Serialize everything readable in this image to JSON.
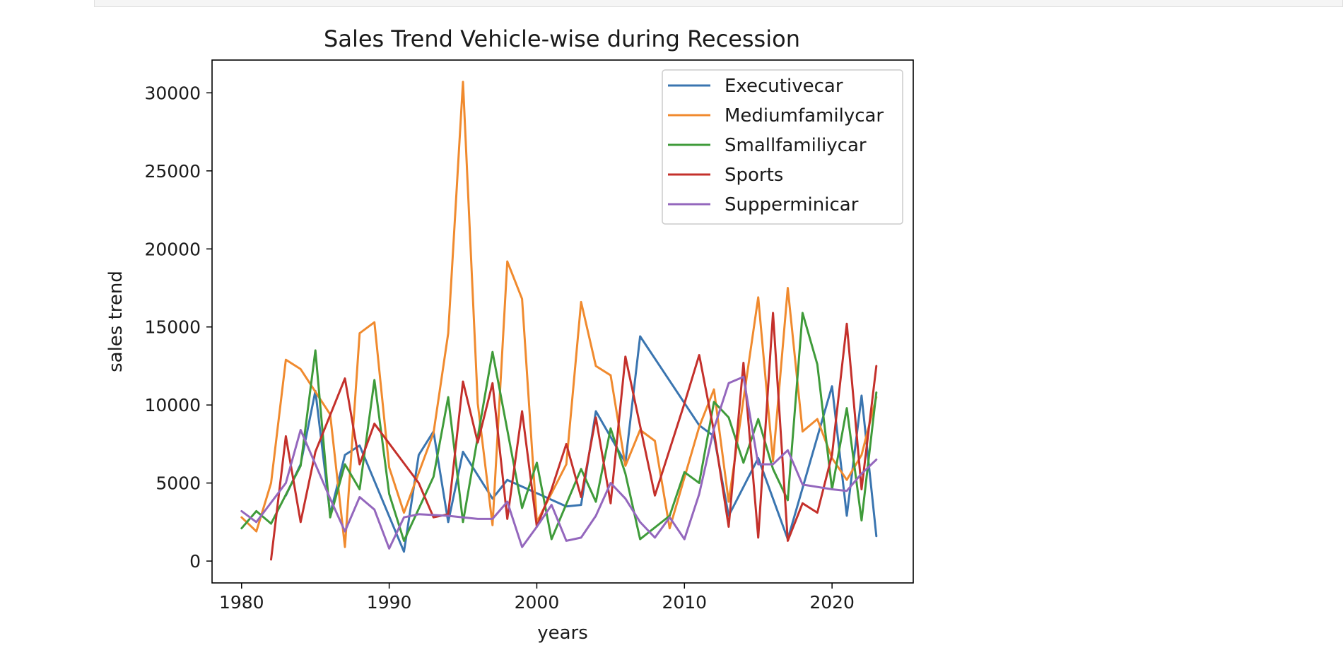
{
  "chart_data": {
    "type": "line",
    "title": "Sales Trend Vehicle-wise during Recession",
    "xlabel": "years",
    "ylabel": "sales trend",
    "xlim": [
      1978,
      2025.5
    ],
    "ylim": [
      -1400,
      32100
    ],
    "xticks": [
      1980,
      1990,
      2000,
      2010,
      2020
    ],
    "yticks": [
      0,
      5000,
      10000,
      15000,
      20000,
      25000,
      30000
    ],
    "grid": false,
    "legend_position": "top-right",
    "series": [
      {
        "name": "Executivecar",
        "color": "#3a75b0",
        "points": [
          [
            1983,
            4200
          ],
          [
            1984,
            6200
          ],
          [
            1985,
            10900
          ],
          [
            1986,
            3000
          ],
          [
            1987,
            6800
          ],
          [
            1988,
            7400
          ],
          [
            1991,
            600
          ],
          [
            1992,
            6800
          ],
          [
            1993,
            8300
          ],
          [
            1994,
            2500
          ],
          [
            1995,
            7000
          ],
          [
            1997,
            4000
          ],
          [
            1998,
            5200
          ],
          [
            2002,
            3500
          ],
          [
            2003,
            3600
          ],
          [
            2004,
            9600
          ],
          [
            2006,
            6300
          ],
          [
            2007,
            14400
          ],
          [
            2011,
            8700
          ],
          [
            2012,
            8000
          ],
          [
            2013,
            2900
          ],
          [
            2015,
            6600
          ],
          [
            2017,
            1400
          ],
          [
            2020,
            11200
          ],
          [
            2021,
            2900
          ],
          [
            2022,
            10600
          ],
          [
            2023,
            1600
          ]
        ]
      },
      {
        "name": "Mediumfamilycar",
        "color": "#f08a2e",
        "points": [
          [
            1980,
            2800
          ],
          [
            1981,
            1900
          ],
          [
            1982,
            5000
          ],
          [
            1983,
            12900
          ],
          [
            1984,
            12300
          ],
          [
            1986,
            9400
          ],
          [
            1987,
            900
          ],
          [
            1988,
            14600
          ],
          [
            1989,
            15300
          ],
          [
            1990,
            6000
          ],
          [
            1991,
            3100
          ],
          [
            1993,
            8200
          ],
          [
            1994,
            14600
          ],
          [
            1995,
            30700
          ],
          [
            1996,
            10100
          ],
          [
            1997,
            2300
          ],
          [
            1998,
            19200
          ],
          [
            1999,
            16800
          ],
          [
            2000,
            2500
          ],
          [
            2002,
            6200
          ],
          [
            2003,
            16600
          ],
          [
            2004,
            12500
          ],
          [
            2005,
            11900
          ],
          [
            2006,
            6100
          ],
          [
            2007,
            8400
          ],
          [
            2008,
            7700
          ],
          [
            2009,
            2100
          ],
          [
            2011,
            8600
          ],
          [
            2012,
            11000
          ],
          [
            2013,
            3800
          ],
          [
            2015,
            16900
          ],
          [
            2016,
            6400
          ],
          [
            2017,
            17500
          ],
          [
            2018,
            8300
          ],
          [
            2019,
            9100
          ],
          [
            2020,
            6600
          ],
          [
            2021,
            5200
          ],
          [
            2022,
            6800
          ],
          [
            2023,
            10500
          ]
        ]
      },
      {
        "name": "Smallfamiliycar",
        "color": "#3f9b3a",
        "points": [
          [
            1980,
            2100
          ],
          [
            1981,
            3200
          ],
          [
            1982,
            2400
          ],
          [
            1984,
            6100
          ],
          [
            1985,
            13500
          ],
          [
            1986,
            2800
          ],
          [
            1987,
            6200
          ],
          [
            1988,
            4600
          ],
          [
            1989,
            11600
          ],
          [
            1990,
            4300
          ],
          [
            1991,
            1300
          ],
          [
            1993,
            5400
          ],
          [
            1994,
            10500
          ],
          [
            1995,
            2500
          ],
          [
            1997,
            13400
          ],
          [
            1999,
            3400
          ],
          [
            2000,
            6300
          ],
          [
            2001,
            1400
          ],
          [
            2003,
            5900
          ],
          [
            2004,
            3800
          ],
          [
            2005,
            8500
          ],
          [
            2006,
            5600
          ],
          [
            2007,
            1400
          ],
          [
            2009,
            2900
          ],
          [
            2010,
            5700
          ],
          [
            2011,
            5000
          ],
          [
            2012,
            10200
          ],
          [
            2013,
            9200
          ],
          [
            2014,
            6300
          ],
          [
            2015,
            9100
          ],
          [
            2016,
            5900
          ],
          [
            2017,
            3900
          ],
          [
            2018,
            15900
          ],
          [
            2019,
            12600
          ],
          [
            2020,
            4600
          ],
          [
            2021,
            9800
          ],
          [
            2022,
            2600
          ],
          [
            2023,
            10800
          ]
        ]
      },
      {
        "name": "Sports",
        "color": "#c4302b",
        "points": [
          [
            1982,
            100
          ],
          [
            1983,
            8000
          ],
          [
            1984,
            2500
          ],
          [
            1985,
            7000
          ],
          [
            1987,
            11700
          ],
          [
            1988,
            6200
          ],
          [
            1989,
            8800
          ],
          [
            1992,
            5000
          ],
          [
            1993,
            2800
          ],
          [
            1994,
            3000
          ],
          [
            1995,
            11500
          ],
          [
            1996,
            7600
          ],
          [
            1997,
            11400
          ],
          [
            1998,
            2700
          ],
          [
            1999,
            9600
          ],
          [
            2000,
            2200
          ],
          [
            2001,
            4600
          ],
          [
            2002,
            7500
          ],
          [
            2003,
            4100
          ],
          [
            2004,
            9200
          ],
          [
            2005,
            3700
          ],
          [
            2006,
            13100
          ],
          [
            2008,
            4200
          ],
          [
            2010,
            10100
          ],
          [
            2011,
            13200
          ],
          [
            2012,
            8300
          ],
          [
            2013,
            2200
          ],
          [
            2014,
            12700
          ],
          [
            2015,
            1500
          ],
          [
            2016,
            15900
          ],
          [
            2017,
            1300
          ],
          [
            2018,
            3700
          ],
          [
            2019,
            3100
          ],
          [
            2020,
            6800
          ],
          [
            2021,
            15200
          ],
          [
            2022,
            4600
          ],
          [
            2023,
            12500
          ]
        ]
      },
      {
        "name": "Supperminicar",
        "color": "#9467bd",
        "points": [
          [
            1980,
            3200
          ],
          [
            1981,
            2500
          ],
          [
            1983,
            5000
          ],
          [
            1984,
            8400
          ],
          [
            1986,
            4000
          ],
          [
            1987,
            1900
          ],
          [
            1988,
            4100
          ],
          [
            1989,
            3300
          ],
          [
            1990,
            800
          ],
          [
            1991,
            2800
          ],
          [
            1992,
            3000
          ],
          [
            1994,
            2900
          ],
          [
            1995,
            2800
          ],
          [
            1996,
            2700
          ],
          [
            1997,
            2700
          ],
          [
            1998,
            3800
          ],
          [
            1999,
            900
          ],
          [
            2000,
            2200
          ],
          [
            2001,
            3600
          ],
          [
            2002,
            1300
          ],
          [
            2003,
            1500
          ],
          [
            2004,
            2900
          ],
          [
            2005,
            5000
          ],
          [
            2006,
            4000
          ],
          [
            2007,
            2500
          ],
          [
            2008,
            1500
          ],
          [
            2009,
            2800
          ],
          [
            2010,
            1400
          ],
          [
            2011,
            4300
          ],
          [
            2012,
            8500
          ],
          [
            2013,
            11400
          ],
          [
            2014,
            11800
          ],
          [
            2015,
            6200
          ],
          [
            2016,
            6200
          ],
          [
            2017,
            7100
          ],
          [
            2018,
            4900
          ],
          [
            2020,
            4600
          ],
          [
            2021,
            4500
          ],
          [
            2022,
            5600
          ],
          [
            2023,
            6500
          ]
        ]
      }
    ]
  }
}
